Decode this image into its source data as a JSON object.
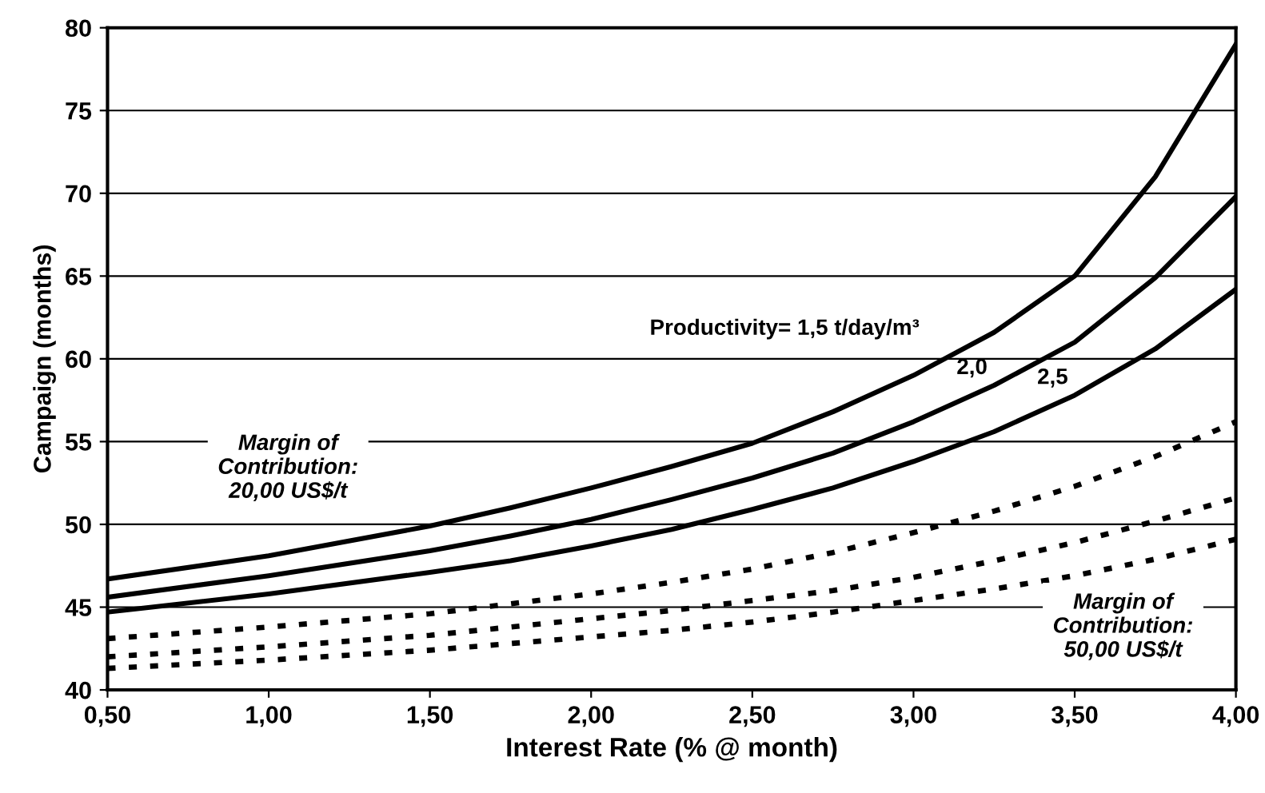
{
  "chart_data": {
    "type": "line",
    "xlabel": "Interest Rate (% @ month)",
    "ylabel": "Campaign (months)",
    "x": [
      0.5,
      1.0,
      1.5,
      1.75,
      2.0,
      2.25,
      2.5,
      2.75,
      3.0,
      3.25,
      3.5,
      3.75,
      4.0
    ],
    "series": [
      {
        "color": "#000000",
        "line_style": "solid",
        "values": [
          46.7,
          48.1,
          49.9,
          51.0,
          52.2,
          53.5,
          54.9,
          56.8,
          59.0,
          61.6,
          65.0,
          71.0,
          79.0
        ]
      },
      {
        "color": "#000000",
        "line_style": "solid",
        "values": [
          45.6,
          46.9,
          48.4,
          49.3,
          50.3,
          51.5,
          52.8,
          54.3,
          56.2,
          58.4,
          61.0,
          64.9,
          69.8
        ]
      },
      {
        "color": "#000000",
        "line_style": "solid",
        "values": [
          44.7,
          45.8,
          47.1,
          47.8,
          48.7,
          49.7,
          50.9,
          52.2,
          53.8,
          55.6,
          57.8,
          60.6,
          64.2
        ]
      },
      {
        "color": "#000000",
        "line_style": "dotted",
        "values": [
          43.1,
          43.8,
          44.6,
          45.2,
          45.8,
          46.5,
          47.3,
          48.3,
          49.5,
          50.8,
          52.3,
          54.1,
          56.2
        ]
      },
      {
        "color": "#000000",
        "line_style": "dotted",
        "values": [
          42.0,
          42.6,
          43.3,
          43.8,
          44.3,
          44.8,
          45.4,
          46.0,
          46.8,
          47.8,
          48.9,
          50.2,
          51.6
        ]
      },
      {
        "color": "#000000",
        "line_style": "dotted",
        "values": [
          41.3,
          41.8,
          42.4,
          42.8,
          43.2,
          43.6,
          44.1,
          44.7,
          45.4,
          46.1,
          46.9,
          47.9,
          49.1
        ]
      }
    ],
    "xlim": [
      0.5,
      4.0
    ],
    "ylim": [
      40,
      80
    ],
    "xticks": [
      {
        "value": 0.5,
        "label": "0,50"
      },
      {
        "value": 1.0,
        "label": "1,00"
      },
      {
        "value": 1.5,
        "label": "1,50"
      },
      {
        "value": 2.0,
        "label": "2,00"
      },
      {
        "value": 2.5,
        "label": "2,50"
      },
      {
        "value": 3.0,
        "label": "3,00"
      },
      {
        "value": 3.5,
        "label": "3,50"
      },
      {
        "value": 4.0,
        "label": "4,00"
      }
    ],
    "yticks": [
      40,
      45,
      50,
      55,
      60,
      65,
      70,
      75,
      80
    ],
    "grid": "y",
    "marker": "none",
    "annotations": [
      "Productivity= 1,5 t/day/m³",
      {
        "text": "2,0",
        "x": 3.25,
        "y": 58.4
      },
      {
        "text": "2,5",
        "x": 3.5,
        "y": 57.8
      },
      "Margin of\nContribution:\n20,00 US$/t",
      "Margin of\nContribution:\n50,00 US$/t"
    ]
  }
}
